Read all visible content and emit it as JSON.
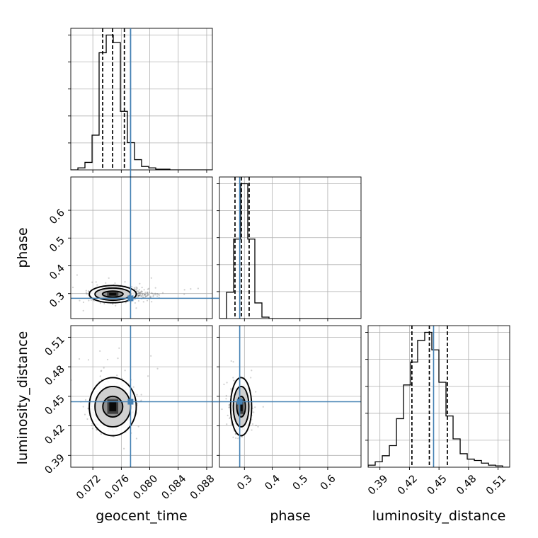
{
  "chart_data": {
    "type": "corner",
    "parameters": [
      "geocent_time",
      "phase",
      "luminosity_distance"
    ],
    "truth_color": "#4682b4",
    "axis_labels": {
      "x": [
        "geocent_time",
        "phase",
        "luminosity_distance"
      ],
      "y": [
        "phase",
        "luminosity_distance"
      ]
    },
    "ranges": {
      "geocent_time": [
        0.0689,
        0.0888
      ],
      "phase": [
        0.21,
        0.72
      ],
      "luminosity_distance": [
        0.378,
        0.5218
      ]
    },
    "ticks": {
      "geocent_time": [
        "0.072",
        "0.076",
        "0.080",
        "0.084",
        "0.088"
      ],
      "phase": [
        "0.3",
        "0.4",
        "0.5",
        "0.6"
      ],
      "luminosity_distance": [
        "0.39",
        "0.42",
        "0.45",
        "0.48",
        "0.51"
      ]
    },
    "truths": {
      "geocent_time": 0.0773,
      "phase": 0.283,
      "luminosity_distance": 0.4445
    },
    "quantiles": {
      "geocent_time": [
        0.07338,
        0.07478,
        0.07643
      ],
      "phase": [
        0.266,
        0.289,
        0.317
      ],
      "luminosity_distance": [
        0.4225,
        0.4402,
        0.4585
      ]
    },
    "histograms": [
      {
        "parameter": "geocent_time",
        "bin_edges": [
          0.0689,
          0.0699,
          0.07089,
          0.07189,
          0.07288,
          0.07388,
          0.07487,
          0.07587,
          0.07686,
          0.07786,
          0.07885,
          0.07985,
          0.08084,
          0.08184,
          0.08283,
          0.08383,
          0.08482,
          0.08582,
          0.08681,
          0.08781,
          0.0888
        ],
        "counts": [
          0,
          0.015,
          0.055,
          0.255,
          0.86,
          0.99,
          0.935,
          0.43,
          0.2,
          0.075,
          0.025,
          0.015,
          0.005,
          0.005,
          0,
          0,
          0,
          0,
          0,
          0
        ]
      },
      {
        "parameter": "phase",
        "bin_edges": [
          0.21,
          0.2355,
          0.261,
          0.2865,
          0.312,
          0.3375,
          0.363,
          0.3885,
          0.414,
          0.4395,
          0.465,
          0.4905,
          0.516,
          0.5415,
          0.567,
          0.5925,
          0.618,
          0.6435,
          0.669,
          0.6945,
          0.72
        ],
        "counts": [
          0,
          0.185,
          0.56,
          0.95,
          0.56,
          0.11,
          0.01,
          0,
          0,
          0,
          0,
          0,
          0,
          0,
          0,
          0,
          0,
          0,
          0,
          0
        ]
      },
      {
        "parameter": "luminosity_distance",
        "bin_edges": [
          0.378,
          0.3852,
          0.3924,
          0.3996,
          0.4068,
          0.414,
          0.4212,
          0.4283,
          0.4355,
          0.4427,
          0.4499,
          0.4571,
          0.4643,
          0.4715,
          0.4787,
          0.4859,
          0.4931,
          0.5003,
          0.5075,
          0.5146,
          0.5218
        ],
        "counts": [
          0.015,
          0.04,
          0.085,
          0.16,
          0.36,
          0.61,
          0.78,
          0.94,
          1.0,
          0.87,
          0.63,
          0.38,
          0.21,
          0.1,
          0.06,
          0.05,
          0.03,
          0.015,
          0.01,
          0
        ]
      }
    ],
    "posterior_2d": [
      {
        "x": "geocent_time",
        "y": "phase",
        "peak": [
          0.0748,
          0.298
        ],
        "contour_extents_1sigma": [
          0.00145,
          0.011
        ],
        "contour_extents_2sigma": [
          0.0025,
          0.022
        ],
        "contour_extents_3sigma": [
          0.0033,
          0.031
        ]
      },
      {
        "x": "geocent_time",
        "y": "luminosity_distance",
        "peak": [
          0.0748,
          0.4395
        ],
        "contour_extents_1sigma": [
          0.0014,
          0.0105
        ],
        "contour_extents_2sigma": [
          0.0025,
          0.0205
        ],
        "contour_extents_3sigma": [
          0.0033,
          0.0295
        ]
      },
      {
        "x": "phase",
        "y": "luminosity_distance",
        "peak": [
          0.288,
          0.4395
        ],
        "contour_extents_1sigma": [
          0.0155,
          0.0105
        ],
        "contour_extents_2sigma": [
          0.028,
          0.0205
        ],
        "contour_extents_3sigma": [
          0.038,
          0.0295
        ]
      }
    ],
    "grid": true
  }
}
